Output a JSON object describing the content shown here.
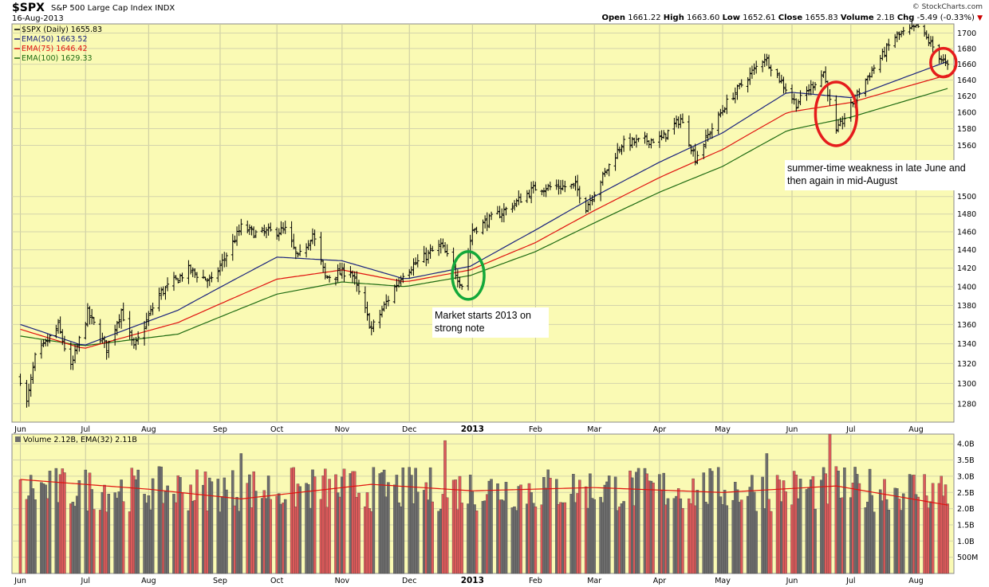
{
  "header": {
    "symbol": "$SPX",
    "name": "S&P 500 Large Cap Index",
    "exchange": "INDX",
    "date": "16-Aug-2013",
    "credit": "© StockCharts.com",
    "open_label": "Open",
    "open": "1661.22",
    "high_label": "High",
    "high": "1663.60",
    "low_label": "Low",
    "low": "1652.61",
    "close_label": "Close",
    "close": "1655.83",
    "volume_label": "Volume",
    "volume": "2.1B",
    "chg_label": "Chg",
    "chg": "-5.49 (-0.33%)"
  },
  "colors": {
    "panel_bg": "#fafab4",
    "ema50": "#1a237e",
    "ema75": "#e0120e",
    "ema100": "#1f6b12",
    "price_bar": "#000000",
    "vol_up": "#6e6e6e",
    "vol_down": "#dc5a5a",
    "circle_green": "#13a83a",
    "circle_red": "#e51c1c"
  },
  "chart_data": [
    {
      "type": "line",
      "subtype": "ohlc-daily",
      "legend_position": "top-left",
      "legend": [
        {
          "label": "$SPX (Daily) 1655.83",
          "color": "#000000"
        },
        {
          "label": "EMA(50) 1663.52",
          "color": "#1a237e"
        },
        {
          "label": "EMA(75) 1646.42",
          "color": "#e0120e"
        },
        {
          "label": "EMA(100) 1629.33",
          "color": "#1f6b12"
        }
      ],
      "x_labels": [
        "Jun",
        "Jul",
        "Aug",
        "Sep",
        "Oct",
        "Nov",
        "Dec",
        "2013",
        "Feb",
        "Mar",
        "Apr",
        "May",
        "Jun",
        "Jul",
        "Aug"
      ],
      "y_ticks": [
        "1280",
        "1300",
        "1320",
        "1340",
        "1360",
        "1380",
        "1400",
        "1420",
        "1440",
        "1460",
        "1480",
        "1500",
        "1560",
        "1580",
        "1600",
        "1620",
        "1640",
        "1660",
        "1680",
        "1700"
      ],
      "ylim": [
        1262,
        1712
      ],
      "log_scale": true,
      "grid": true,
      "price_anchors": [
        {
          "x": "2012-06-01",
          "y": 1305
        },
        {
          "x": "2012-06-04",
          "y": 1280
        },
        {
          "x": "2012-06-08",
          "y": 1325
        },
        {
          "x": "2012-06-19",
          "y": 1358
        },
        {
          "x": "2012-06-25",
          "y": 1315
        },
        {
          "x": "2012-07-03",
          "y": 1372
        },
        {
          "x": "2012-07-12",
          "y": 1335
        },
        {
          "x": "2012-07-19",
          "y": 1375
        },
        {
          "x": "2012-07-25",
          "y": 1335
        },
        {
          "x": "2012-08-06",
          "y": 1392
        },
        {
          "x": "2012-08-20",
          "y": 1418
        },
        {
          "x": "2012-08-31",
          "y": 1405
        },
        {
          "x": "2012-09-07",
          "y": 1435
        },
        {
          "x": "2012-09-14",
          "y": 1465
        },
        {
          "x": "2012-09-21",
          "y": 1458
        },
        {
          "x": "2012-10-05",
          "y": 1462
        },
        {
          "x": "2012-10-11",
          "y": 1430
        },
        {
          "x": "2012-10-18",
          "y": 1458
        },
        {
          "x": "2012-10-24",
          "y": 1410
        },
        {
          "x": "2012-11-05",
          "y": 1418
        },
        {
          "x": "2012-11-15",
          "y": 1355
        },
        {
          "x": "2012-11-30",
          "y": 1415
        },
        {
          "x": "2012-12-18",
          "y": 1445
        },
        {
          "x": "2012-12-28",
          "y": 1402
        },
        {
          "x": "2013-01-02",
          "y": 1462
        },
        {
          "x": "2013-01-18",
          "y": 1485
        },
        {
          "x": "2013-02-01",
          "y": 1510
        },
        {
          "x": "2013-02-20",
          "y": 1512
        },
        {
          "x": "2013-02-25",
          "y": 1488
        },
        {
          "x": "2013-03-14",
          "y": 1562
        },
        {
          "x": "2013-04-02",
          "y": 1568
        },
        {
          "x": "2013-04-11",
          "y": 1592
        },
        {
          "x": "2013-04-18",
          "y": 1545
        },
        {
          "x": "2013-05-03",
          "y": 1612
        },
        {
          "x": "2013-05-21",
          "y": 1669
        },
        {
          "x": "2013-06-05",
          "y": 1610
        },
        {
          "x": "2013-06-18",
          "y": 1650
        },
        {
          "x": "2013-06-24",
          "y": 1575
        },
        {
          "x": "2013-07-08",
          "y": 1640
        },
        {
          "x": "2013-07-22",
          "y": 1695
        },
        {
          "x": "2013-08-02",
          "y": 1708
        },
        {
          "x": "2013-08-16",
          "y": 1656
        }
      ],
      "ema50_anchors": [
        {
          "x": "2012-06-01",
          "y": 1360
        },
        {
          "x": "2012-07-01",
          "y": 1338
        },
        {
          "x": "2012-08-15",
          "y": 1375
        },
        {
          "x": "2012-10-01",
          "y": 1432
        },
        {
          "x": "2012-11-01",
          "y": 1428
        },
        {
          "x": "2012-12-01",
          "y": 1408
        },
        {
          "x": "2013-01-01",
          "y": 1422
        },
        {
          "x": "2013-02-01",
          "y": 1462
        },
        {
          "x": "2013-03-01",
          "y": 1500
        },
        {
          "x": "2013-04-01",
          "y": 1540
        },
        {
          "x": "2013-05-01",
          "y": 1575
        },
        {
          "x": "2013-06-01",
          "y": 1625
        },
        {
          "x": "2013-07-01",
          "y": 1618
        },
        {
          "x": "2013-08-16",
          "y": 1663.52
        }
      ],
      "ema75_anchors": [
        {
          "x": "2012-06-01",
          "y": 1355
        },
        {
          "x": "2012-07-01",
          "y": 1335
        },
        {
          "x": "2012-08-15",
          "y": 1362
        },
        {
          "x": "2012-10-01",
          "y": 1408
        },
        {
          "x": "2012-11-01",
          "y": 1418
        },
        {
          "x": "2012-12-01",
          "y": 1405
        },
        {
          "x": "2013-01-01",
          "y": 1418
        },
        {
          "x": "2013-02-01",
          "y": 1448
        },
        {
          "x": "2013-03-01",
          "y": 1484
        },
        {
          "x": "2013-04-01",
          "y": 1522
        },
        {
          "x": "2013-05-01",
          "y": 1555
        },
        {
          "x": "2013-06-01",
          "y": 1600
        },
        {
          "x": "2013-07-01",
          "y": 1612
        },
        {
          "x": "2013-08-16",
          "y": 1646.42
        }
      ],
      "ema100_anchors": [
        {
          "x": "2012-06-01",
          "y": 1348
        },
        {
          "x": "2012-07-01",
          "y": 1338
        },
        {
          "x": "2012-08-15",
          "y": 1350
        },
        {
          "x": "2012-10-01",
          "y": 1392
        },
        {
          "x": "2012-11-01",
          "y": 1405
        },
        {
          "x": "2012-12-01",
          "y": 1400
        },
        {
          "x": "2013-01-01",
          "y": 1412
        },
        {
          "x": "2013-02-01",
          "y": 1438
        },
        {
          "x": "2013-03-01",
          "y": 1470
        },
        {
          "x": "2013-04-01",
          "y": 1505
        },
        {
          "x": "2013-05-01",
          "y": 1535
        },
        {
          "x": "2013-06-01",
          "y": 1578
        },
        {
          "x": "2013-07-01",
          "y": 1594
        },
        {
          "x": "2013-08-16",
          "y": 1629.33
        }
      ],
      "annotations": [
        {
          "text": "Market starts 2013 on strong note",
          "lines": [
            "Market starts 2013 on",
            "strong note"
          ],
          "circle_color": "green",
          "x": "2012-12-31",
          "y": 1412
        },
        {
          "text": "summer-time weakness in late June and then again in mid-August",
          "lines": [
            "summer-time weakness in late June and",
            "then again in mid-August"
          ],
          "circle_color": "red",
          "x": "2013-06-24",
          "y": 1598
        },
        {
          "circle_color": "red",
          "x": "2013-08-14",
          "y": 1662
        }
      ]
    },
    {
      "type": "bar",
      "legend": [
        {
          "label": "Volume 2.12B, EMA(32) 2.11B",
          "color": "#000000"
        }
      ],
      "x_labels": [
        "Jun",
        "Jul",
        "Aug",
        "Sep",
        "Oct",
        "Nov",
        "Dec",
        "2013",
        "Feb",
        "Mar",
        "Apr",
        "May",
        "Jun",
        "Jul",
        "Aug"
      ],
      "y_ticks": [
        "500M",
        "1.0B",
        "1.5B",
        "2.0B",
        "2.5B",
        "3.0B",
        "3.5B",
        "4.0B"
      ],
      "ylim": [
        0,
        4.3
      ],
      "unit": "billions of shares",
      "volume_latest": 2.12,
      "volume_ema32_latest": 2.11,
      "volume_range_typical": [
        1.9,
        3.3
      ],
      "volume_spikes": [
        {
          "x": "2012-09-14",
          "y": 3.7
        },
        {
          "x": "2012-12-20",
          "y": 4.1
        },
        {
          "x": "2013-05-22",
          "y": 3.7
        },
        {
          "x": "2013-06-21",
          "y": 4.3
        },
        {
          "x": "2013-06-24",
          "y": 3.3
        }
      ],
      "volume_ema_anchors": [
        {
          "x": "2012-06-01",
          "y": 2.9
        },
        {
          "x": "2012-08-01",
          "y": 2.6
        },
        {
          "x": "2012-09-14",
          "y": 2.3
        },
        {
          "x": "2012-11-15",
          "y": 2.75
        },
        {
          "x": "2013-01-02",
          "y": 2.55
        },
        {
          "x": "2013-03-01",
          "y": 2.65
        },
        {
          "x": "2013-05-01",
          "y": 2.5
        },
        {
          "x": "2013-06-24",
          "y": 2.7
        },
        {
          "x": "2013-08-16",
          "y": 2.11
        }
      ]
    }
  ]
}
